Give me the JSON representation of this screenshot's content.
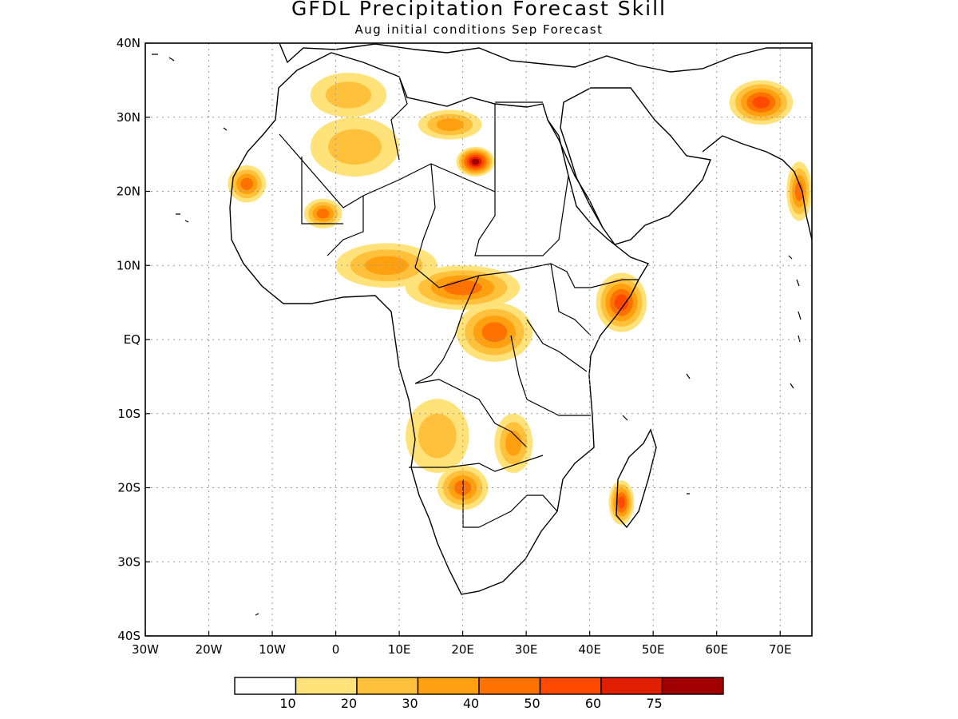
{
  "title": "GFDL Precipitation Forecast Skill",
  "subtitle": "Aug initial conditions  Sep Forecast",
  "map": {
    "lon_range": [
      -30,
      75
    ],
    "lat_range": [
      -40,
      40
    ],
    "x_ticks": [
      {
        "lon": -30,
        "label": "30W"
      },
      {
        "lon": -20,
        "label": "20W"
      },
      {
        "lon": -10,
        "label": "10W"
      },
      {
        "lon": 0,
        "label": "0"
      },
      {
        "lon": 10,
        "label": "10E"
      },
      {
        "lon": 20,
        "label": "20E"
      },
      {
        "lon": 30,
        "label": "30E"
      },
      {
        "lon": 40,
        "label": "40E"
      },
      {
        "lon": 50,
        "label": "50E"
      },
      {
        "lon": 60,
        "label": "60E"
      },
      {
        "lon": 70,
        "label": "70E"
      }
    ],
    "y_ticks": [
      {
        "lat": 40,
        "label": "40N"
      },
      {
        "lat": 30,
        "label": "30N"
      },
      {
        "lat": 20,
        "label": "20N"
      },
      {
        "lat": 10,
        "label": "10N"
      },
      {
        "lat": 0,
        "label": "EQ"
      },
      {
        "lat": -10,
        "label": "10S"
      },
      {
        "lat": -20,
        "label": "20S"
      },
      {
        "lat": -30,
        "label": "30S"
      },
      {
        "lat": -40,
        "label": "40S"
      }
    ],
    "grid": "dotted"
  },
  "colorbar": {
    "colors": [
      "#ffffff",
      "#ffe27a",
      "#ffc03c",
      "#ffa010",
      "#ff7200",
      "#ff4a00",
      "#e01e00",
      "#a00000"
    ],
    "labels": [
      "10",
      "20",
      "30",
      "40",
      "50",
      "60",
      "75"
    ]
  },
  "skill_regions": [
    {
      "lon": -14,
      "lat": 21,
      "rx": 3,
      "ry": 2.5,
      "level": 4
    },
    {
      "lon": 2,
      "lat": 33,
      "rx": 6,
      "ry": 3,
      "level": 2
    },
    {
      "lon": 3,
      "lat": 26,
      "rx": 7,
      "ry": 4,
      "level": 2
    },
    {
      "lon": 22,
      "lat": 24,
      "rx": 3,
      "ry": 2,
      "level": 7
    },
    {
      "lon": 18,
      "lat": 29,
      "rx": 5,
      "ry": 2,
      "level": 3
    },
    {
      "lon": 20,
      "lat": 7,
      "rx": 9,
      "ry": 3,
      "level": 4
    },
    {
      "lon": 25,
      "lat": 1,
      "rx": 6,
      "ry": 4,
      "level": 4
    },
    {
      "lon": 45,
      "lat": 5,
      "rx": 4,
      "ry": 4,
      "level": 5
    },
    {
      "lon": 8,
      "lat": 10,
      "rx": 8,
      "ry": 3,
      "level": 3
    },
    {
      "lon": 20,
      "lat": -20,
      "rx": 4,
      "ry": 3,
      "level": 4
    },
    {
      "lon": 16,
      "lat": -13,
      "rx": 5,
      "ry": 5,
      "level": 2
    },
    {
      "lon": 45,
      "lat": -22,
      "rx": 2,
      "ry": 3,
      "level": 5
    },
    {
      "lon": 67,
      "lat": 32,
      "rx": 5,
      "ry": 3,
      "level": 5
    },
    {
      "lon": 73,
      "lat": 20,
      "rx": 2,
      "ry": 4,
      "level": 4
    },
    {
      "lon": -2,
      "lat": 17,
      "rx": 3,
      "ry": 2,
      "level": 4
    },
    {
      "lon": 28,
      "lat": -14,
      "rx": 3,
      "ry": 4,
      "level": 3
    }
  ]
}
